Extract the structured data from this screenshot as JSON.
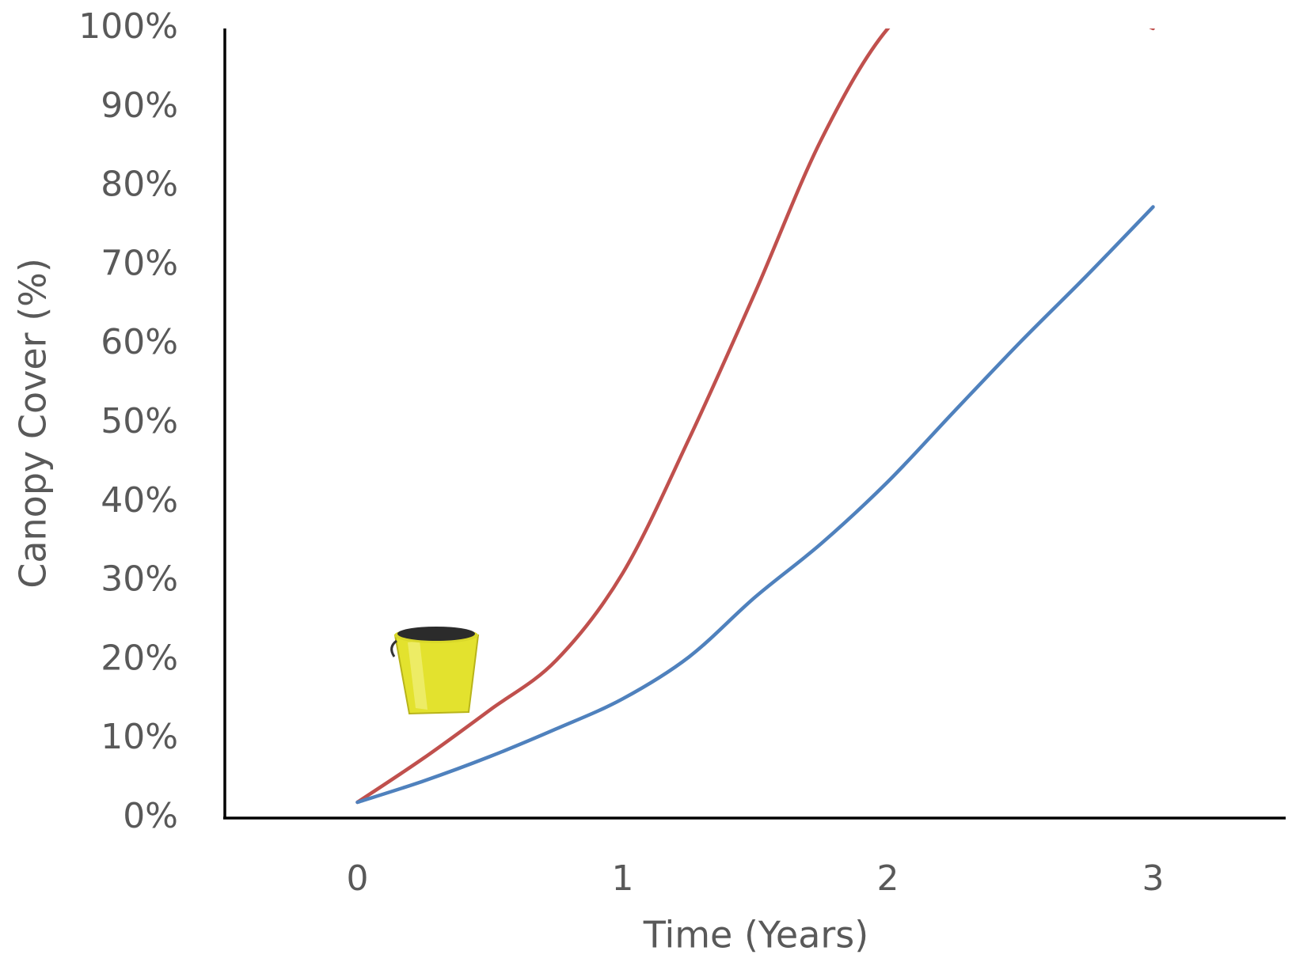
{
  "chart_data": {
    "type": "line",
    "x_label": "Time (Years)",
    "y_label": "Canopy Cover (%)",
    "x": [
      0,
      0.25,
      0.5,
      0.75,
      1,
      1.25,
      1.5,
      1.75,
      2,
      2.25,
      2.5,
      2.75,
      3
    ],
    "series": [
      {
        "color": "#c0504d",
        "values": [
          2,
          7.6,
          13.7,
          20,
          31,
          48,
          66.6,
          86,
          100,
          106,
          108,
          104,
          100
        ]
      },
      {
        "color": "#4f81bd",
        "values": [
          2,
          4.7,
          7.8,
          11.3,
          15.1,
          20.4,
          28,
          34.8,
          42.6,
          51.5,
          60.3,
          68.7,
          77.4
        ]
      }
    ],
    "xlim": [
      -0.5,
      3.5
    ],
    "xticks": [
      0,
      1,
      2,
      3
    ],
    "ylim": [
      0,
      100
    ],
    "yticks": [
      {
        "value": 0,
        "label": "0%"
      },
      {
        "value": 10,
        "label": "10%"
      },
      {
        "value": 20,
        "label": "20%"
      },
      {
        "value": 30,
        "label": "30%"
      },
      {
        "value": 40,
        "label": "40%"
      },
      {
        "value": 50,
        "label": "50%"
      },
      {
        "value": 60,
        "label": "60%"
      },
      {
        "value": 70,
        "label": "70%"
      },
      {
        "value": 80,
        "label": "80%"
      },
      {
        "value": 90,
        "label": "90%"
      },
      {
        "value": 100,
        "label": "100%"
      }
    ],
    "grid": false
  }
}
